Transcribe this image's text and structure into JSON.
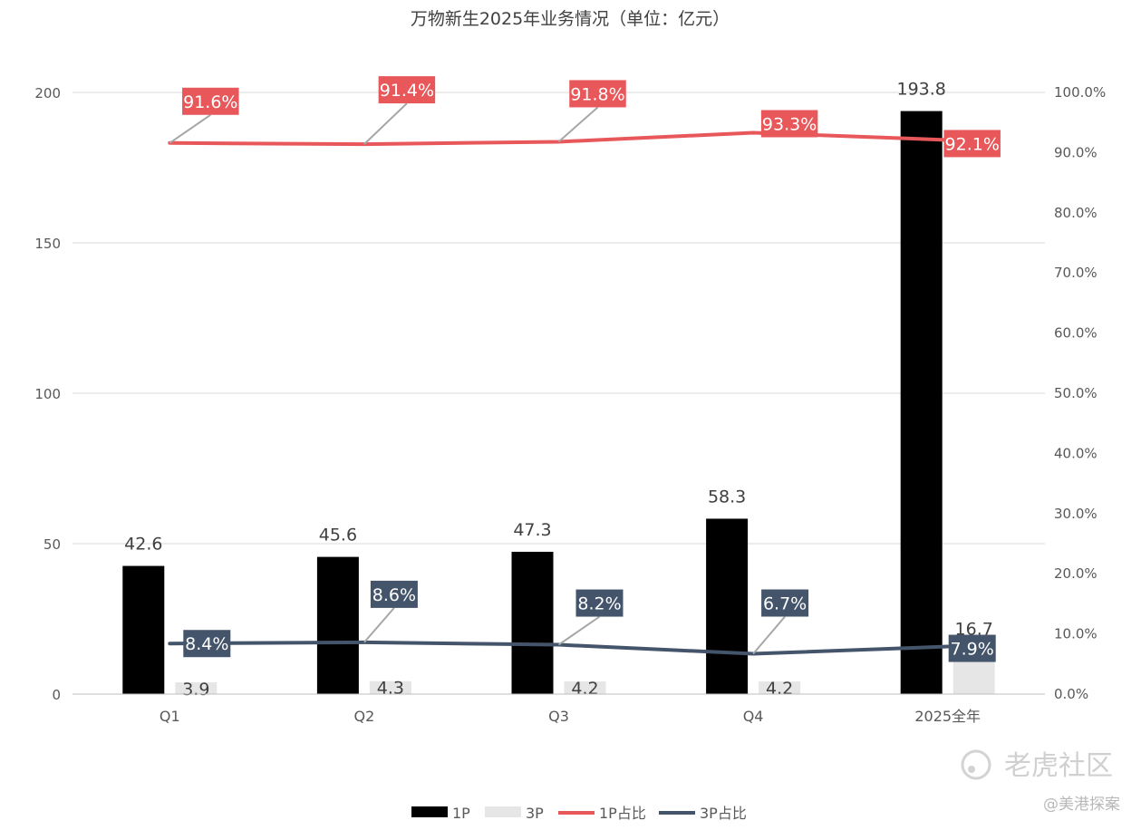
{
  "chart_data": {
    "type": "bar",
    "title": "万物新生2025年业务情况（单位：亿元）",
    "categories": [
      "Q1",
      "Q2",
      "Q3",
      "Q4",
      "2025全年"
    ],
    "bar_series": [
      {
        "name": "1P",
        "values": [
          42.6,
          45.6,
          47.3,
          58.3,
          193.8
        ],
        "labels": [
          "42.6",
          "45.6",
          "47.3",
          "58.3",
          "193.8"
        ],
        "color": "#000000"
      },
      {
        "name": "3P",
        "values": [
          3.9,
          4.3,
          4.2,
          4.2,
          16.7
        ],
        "labels": [
          "3.9",
          "4.3",
          "4.2",
          "4.2",
          "16.7"
        ],
        "color": "#e6e6e6"
      }
    ],
    "line_series": [
      {
        "name": "1P占比",
        "values": [
          91.6,
          91.4,
          91.8,
          93.3,
          92.1
        ],
        "labels": [
          "91.6%",
          "91.4%",
          "91.8%",
          "93.3%",
          "92.1%"
        ],
        "color": "#e8575a"
      },
      {
        "name": "3P占比",
        "values": [
          8.4,
          8.6,
          8.2,
          6.7,
          7.9
        ],
        "labels": [
          "8.4%",
          "8.6%",
          "8.2%",
          "6.7%",
          "7.9%"
        ],
        "color": "#44546a"
      }
    ],
    "y_left": {
      "range": [
        0,
        200
      ],
      "ticks": [
        "0",
        "50",
        "100",
        "150",
        "200"
      ]
    },
    "y_right": {
      "range": [
        0,
        100
      ],
      "ticks": [
        "0.0%",
        "10.0%",
        "20.0%",
        "30.0%",
        "40.0%",
        "50.0%",
        "60.0%",
        "70.0%",
        "80.0%",
        "90.0%",
        "100.0%"
      ]
    },
    "grid": true,
    "legend_position": "bottom"
  },
  "watermark": {
    "brand": "老虎社区",
    "author": "@美港探案"
  }
}
